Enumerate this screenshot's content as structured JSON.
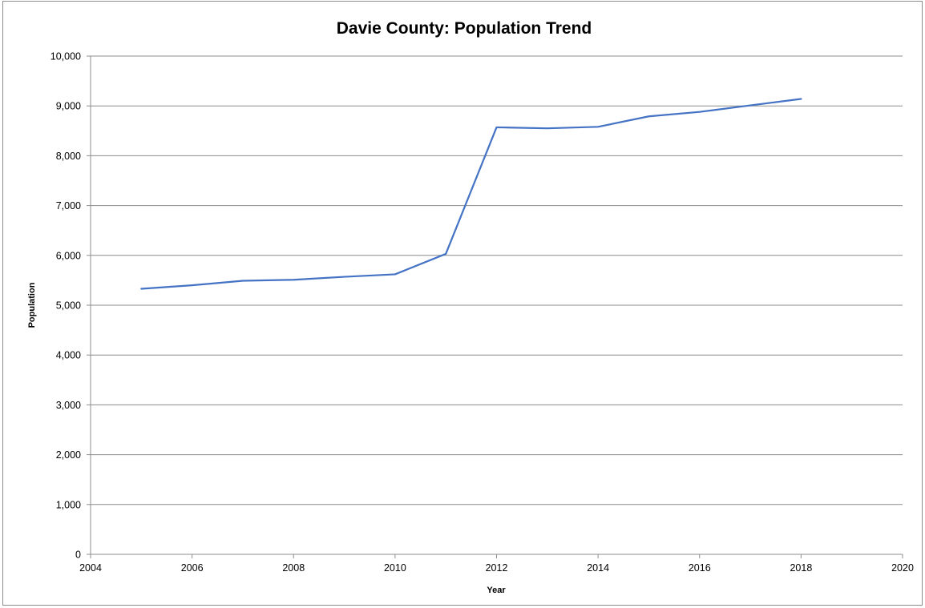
{
  "chart_data": {
    "type": "line",
    "title": "Davie County: Population Trend",
    "xlabel": "Year",
    "ylabel": "Population",
    "xlim": [
      2004,
      2020
    ],
    "ylim": [
      0,
      10000
    ],
    "x_ticks": [
      2004,
      2006,
      2008,
      2010,
      2012,
      2014,
      2016,
      2018,
      2020
    ],
    "x_tick_labels": [
      "2004",
      "2006",
      "2008",
      "2010",
      "2012",
      "2014",
      "2016",
      "2018",
      "2020"
    ],
    "y_ticks": [
      0,
      1000,
      2000,
      3000,
      4000,
      5000,
      6000,
      7000,
      8000,
      9000,
      10000
    ],
    "y_tick_labels": [
      "0",
      "1,000",
      "2,000",
      "3,000",
      "4,000",
      "5,000",
      "6,000",
      "7,000",
      "8,000",
      "9,000",
      "10,000"
    ],
    "grid": "horizontal",
    "legend": "none",
    "series": [
      {
        "color": "#4472c4",
        "x": [
          2005,
          2006,
          2007,
          2008,
          2009,
          2010,
          2011,
          2012,
          2013,
          2014,
          2015,
          2016,
          2017,
          2018
        ],
        "y": [
          5330,
          5400,
          5490,
          5510,
          5570,
          5620,
          6030,
          8570,
          8550,
          8580,
          8790,
          8880,
          9010,
          9140
        ]
      }
    ]
  }
}
